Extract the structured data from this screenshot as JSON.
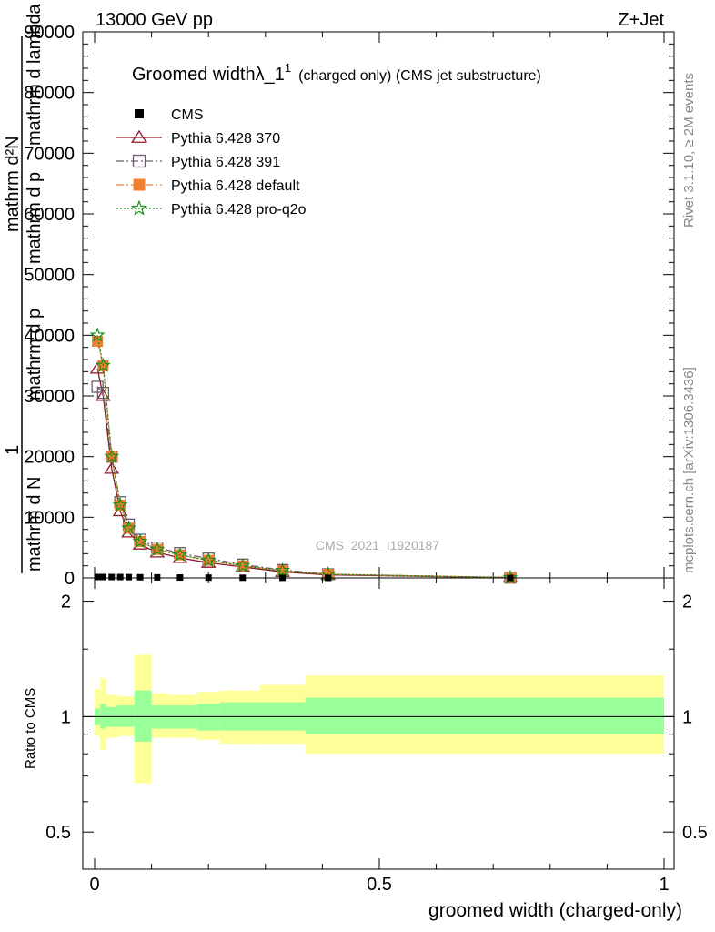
{
  "header": {
    "left": "13000 GeV pp",
    "right": "Z+Jet"
  },
  "side_labels": {
    "rivet": "Rivet 3.1.10, ≥ 2M events",
    "mcplots": "mcplots.cern.ch [arXiv:1306.3436]"
  },
  "watermark": "CMS_2021_I1920187",
  "chart_data": [
    {
      "type": "line",
      "title": "Groomed width",
      "title_symbol": "λ_1",
      "title_sup": "1",
      "title_suffix": "(charged only) (CMS jet substructure)",
      "ylabel_parts": {
        "one": "1",
        "denominator_left": "mathrm d N",
        "denominator_right": "mathrm d p",
        "numerator": "mathrm d²N",
        "denominator_parts": [
          "mathrm d p",
          "mathrm d lambda"
        ]
      },
      "xlim": [
        0,
        1
      ],
      "ylim": [
        0,
        90000
      ],
      "yticks": [
        0,
        10000,
        20000,
        30000,
        40000,
        50000,
        60000,
        70000,
        80000,
        90000
      ],
      "ytick_labels": [
        "0",
        "10000",
        "20000",
        "30000",
        "40000",
        "50000",
        "60000",
        "70000",
        "80000",
        "90000"
      ],
      "legend_position": "top-left",
      "x": [
        0.005,
        0.015,
        0.03,
        0.045,
        0.06,
        0.08,
        0.11,
        0.15,
        0.2,
        0.26,
        0.33,
        0.41,
        0.73
      ],
      "series": [
        {
          "name": "CMS",
          "color": "#000000",
          "marker": "filled-square",
          "values": [
            150,
            150,
            150,
            150,
            130,
            110,
            90,
            70,
            50,
            30,
            15,
            5,
            1
          ]
        },
        {
          "name": "Pythia 6.428 370",
          "color": "#8b1a2a",
          "marker": "open-triangle",
          "linestyle": "solid",
          "values": [
            34500,
            30000,
            18000,
            11000,
            7500,
            5500,
            4200,
            3300,
            2500,
            1800,
            1000,
            500,
            50
          ]
        },
        {
          "name": "Pythia 6.428 391",
          "color": "#6e5a6e",
          "marker": "open-square",
          "linestyle": "dashdot",
          "values": [
            31500,
            30500,
            20000,
            12500,
            8800,
            6300,
            5000,
            4100,
            3200,
            2200,
            1300,
            600,
            60
          ]
        },
        {
          "name": "Pythia 6.428 default",
          "color": "#f08030",
          "marker": "filled-square",
          "linestyle": "dashdot",
          "values": [
            39000,
            35000,
            20000,
            12000,
            8200,
            6000,
            4700,
            3800,
            2900,
            2000,
            1200,
            600,
            55
          ]
        },
        {
          "name": "Pythia 6.428 pro-q2o",
          "color": "#1a8c1a",
          "marker": "star",
          "linestyle": "dotted",
          "values": [
            40000,
            35000,
            20000,
            12000,
            8200,
            6000,
            4700,
            3800,
            2900,
            2000,
            1200,
            600,
            55
          ]
        }
      ]
    },
    {
      "type": "area",
      "ylabel": "Ratio to CMS",
      "xlabel": "groomed width (charged-only)",
      "xlim": [
        0,
        1
      ],
      "ylim": [
        0.4,
        2.3
      ],
      "scale": "log",
      "yticks": [
        0.5,
        1,
        2
      ],
      "ytick_labels": [
        "0.5",
        "1",
        "2"
      ],
      "xticks": [
        0,
        0.5,
        1
      ],
      "xtick_labels": [
        "0",
        "0.5",
        "1"
      ],
      "bin_edges": [
        0,
        0.01,
        0.02,
        0.04,
        0.07,
        0.1,
        0.13,
        0.18,
        0.22,
        0.29,
        0.37,
        0.45,
        1.0
      ],
      "band_inner": {
        "color": "#99ff99",
        "low": [
          0.95,
          0.93,
          0.94,
          0.94,
          0.86,
          0.93,
          0.93,
          0.92,
          0.92,
          0.92,
          0.9,
          0.9
        ],
        "high": [
          1.05,
          1.08,
          1.06,
          1.07,
          1.17,
          1.07,
          1.07,
          1.08,
          1.09,
          1.09,
          1.12,
          1.12
        ]
      },
      "band_outer": {
        "color": "#ffff99",
        "low": [
          0.89,
          0.82,
          0.88,
          0.89,
          0.67,
          0.88,
          0.88,
          0.87,
          0.85,
          0.85,
          0.8,
          0.8
        ],
        "high": [
          1.18,
          1.26,
          1.14,
          1.13,
          1.45,
          1.15,
          1.14,
          1.16,
          1.17,
          1.21,
          1.28,
          1.28
        ]
      },
      "reference_line": 1
    }
  ]
}
